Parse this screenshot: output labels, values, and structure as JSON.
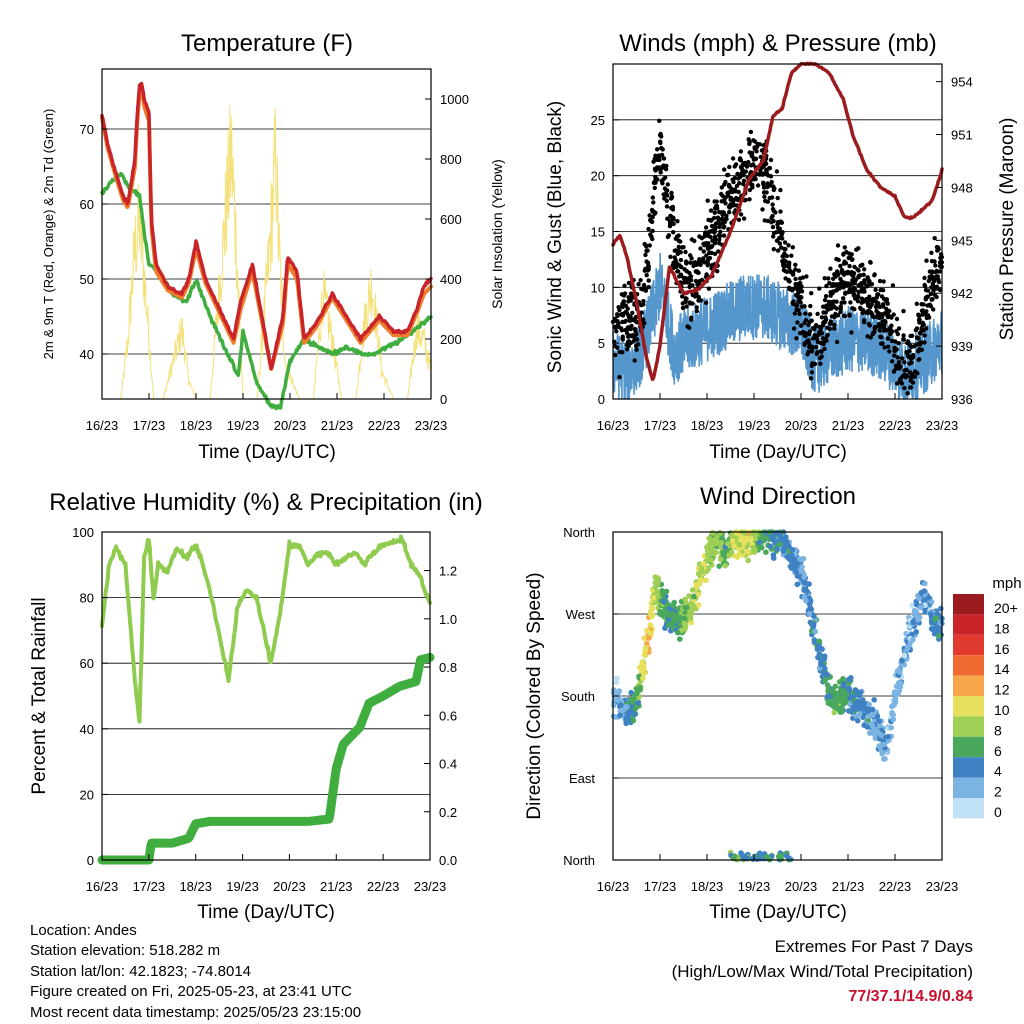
{
  "charts": {
    "temp": {
      "title": "Temperature (F)",
      "ylabel_left": "2m & 9m T (Red, Orange) & 2m Td (Green)",
      "ylabel_right": "Solar Insolation (Yellow)",
      "xlabel": "Time (Day/UTC)",
      "yticks_left": [
        "40",
        "50",
        "60",
        "70"
      ],
      "yticks_right": [
        "0",
        "200",
        "400",
        "600",
        "800",
        "1000"
      ],
      "xticks": [
        "16/23",
        "17/23",
        "18/23",
        "19/23",
        "20/23",
        "21/23",
        "22/23",
        "23/23"
      ]
    },
    "wind": {
      "title": "Winds (mph) & Pressure (mb)",
      "ylabel_left": "Sonic Wind & Gust (Blue, Black)",
      "ylabel_right": "Station Pressure (Maroon)",
      "xlabel": "Time (Day/UTC)",
      "yticks_left": [
        "0",
        "5",
        "10",
        "15",
        "20",
        "25"
      ],
      "yticks_right": [
        "936",
        "939",
        "942",
        "945",
        "948",
        "951",
        "954"
      ],
      "xticks": [
        "16/23",
        "17/23",
        "18/23",
        "19/23",
        "20/23",
        "21/23",
        "22/23",
        "23/23"
      ]
    },
    "rh": {
      "title": "Relative Humidity (%) & Precipitation (in)",
      "ylabel_left": "Percent & Total Rainfall",
      "xlabel": "Time (Day/UTC)",
      "yticks_left": [
        "0",
        "20",
        "40",
        "60",
        "80",
        "100"
      ],
      "yticks_right": [
        "0.0",
        "0.2",
        "0.4",
        "0.6",
        "0.8",
        "1.0",
        "1.2"
      ],
      "xticks": [
        "16/23",
        "17/23",
        "18/23",
        "19/23",
        "20/23",
        "21/23",
        "22/23",
        "23/23"
      ]
    },
    "dir": {
      "title": "Wind Direction",
      "ylabel_left": "Direction (Colored By Speed)",
      "xlabel": "Time (Day/UTC)",
      "yticks_left": [
        "North",
        "East",
        "South",
        "West",
        "North"
      ],
      "xticks": [
        "16/23",
        "17/23",
        "18/23",
        "19/23",
        "20/23",
        "21/23",
        "22/23",
        "23/23"
      ],
      "legend_title": "mph",
      "legend_labels": [
        "20+",
        "18",
        "16",
        "14",
        "12",
        "10",
        "8",
        "6",
        "4",
        "2",
        "0"
      ],
      "legend_colors": [
        "#9b1b1e",
        "#c8242a",
        "#e03a2f",
        "#f06a32",
        "#f7a64a",
        "#e6e05c",
        "#9fcf55",
        "#4aa85c",
        "#3f82c4",
        "#7bb4e3",
        "#bfe0f5"
      ]
    }
  },
  "info": {
    "location": "Location: Andes",
    "elevation": "Station elevation: 518.282 m",
    "latlon": "Station lat/lon: 42.1823; -74.8014",
    "created": "Figure created on Fri, 2025-05-23, at 23:41 UTC",
    "timestamp": "Most recent data timestamp: 2025/05/23 23:15:00"
  },
  "extremes": {
    "title": "Extremes For Past 7 Days",
    "subtitle": "(High/Low/Max Wind/Total Precipitation)",
    "values": "77/37.1/14.9/0.84"
  },
  "chart_data": [
    {
      "type": "line",
      "title": "Temperature (F)",
      "xlabel": "Time (Day/UTC)",
      "ylabel": "2m & 9m T (Red, Orange) & 2m Td (Green)",
      "ylabel_right": "Solar Insolation (Yellow)",
      "xlim": [
        0,
        7
      ],
      "ylim": [
        34,
        78
      ],
      "ylim_right": [
        0,
        1100
      ],
      "series": [
        {
          "name": "2m T",
          "color": "#c8242a",
          "axis": "left",
          "x": [
            0,
            0.12,
            0.3,
            0.45,
            0.55,
            0.7,
            0.75,
            0.8,
            0.85,
            0.9,
            1.0,
            1.05,
            1.15,
            1.4,
            1.7,
            1.85,
            2.0,
            2.2,
            2.5,
            2.8,
            2.95,
            3.2,
            3.6,
            3.85,
            3.95,
            4.15,
            4.3,
            4.55,
            4.9,
            5.2,
            5.5,
            5.9,
            6.2,
            6.5,
            6.7,
            6.85,
            7.0
          ],
          "values": [
            72,
            68,
            64,
            61,
            60,
            66,
            72,
            76,
            76,
            74,
            72,
            58,
            52,
            49,
            48,
            50,
            55,
            50,
            46,
            42,
            47,
            52,
            38,
            45,
            53,
            51,
            42,
            44,
            48,
            45,
            42,
            45,
            43,
            43,
            46,
            49,
            50
          ]
        },
        {
          "name": "9m T",
          "color": "#f07d2a",
          "axis": "left",
          "x": [
            0,
            0.12,
            0.3,
            0.45,
            0.55,
            0.7,
            0.75,
            0.8,
            0.85,
            0.9,
            1.0,
            1.05,
            1.15,
            1.4,
            1.7,
            1.85,
            2.0,
            2.2,
            2.5,
            2.8,
            2.95,
            3.2,
            3.6,
            3.85,
            3.95,
            4.15,
            4.3,
            4.55,
            4.9,
            5.2,
            5.5,
            5.9,
            6.2,
            6.5,
            6.7,
            6.85,
            7.0
          ],
          "values": [
            71.5,
            67.5,
            63.5,
            60.5,
            59.5,
            65,
            71,
            75,
            75,
            73,
            71,
            57,
            51,
            48.5,
            47.5,
            49.5,
            54,
            49.5,
            45.5,
            41.5,
            46,
            51,
            38,
            44,
            52,
            50,
            41.5,
            43.5,
            47.5,
            44.5,
            41.5,
            44.5,
            42.5,
            42.5,
            45.5,
            48,
            49
          ]
        },
        {
          "name": "2m Td",
          "color": "#3fae3f",
          "axis": "left",
          "x": [
            0,
            0.2,
            0.4,
            0.6,
            0.8,
            0.9,
            1.0,
            1.2,
            1.5,
            1.8,
            2.0,
            2.3,
            2.6,
            2.9,
            3.0,
            3.3,
            3.6,
            3.8,
            4.0,
            4.3,
            4.6,
            4.9,
            5.2,
            5.5,
            5.8,
            6.1,
            6.4,
            6.6,
            6.8,
            7.0
          ],
          "values": [
            61.5,
            63,
            64,
            62,
            61,
            56,
            52,
            51,
            48,
            47,
            50,
            45,
            41,
            37,
            43,
            36,
            33,
            33,
            39,
            42,
            41,
            40,
            41,
            40,
            40,
            41,
            42,
            43,
            44,
            45
          ]
        },
        {
          "name": "Solar Insolation",
          "color": "#f5e17a",
          "axis": "right",
          "x": [
            0,
            0.4,
            0.55,
            0.7,
            0.8,
            0.95,
            1.1,
            1.3,
            1.5,
            1.7,
            1.85,
            2.0,
            2.3,
            2.55,
            2.75,
            2.85,
            3.0,
            3.3,
            3.55,
            3.7,
            3.75,
            3.9,
            4.2,
            4.5,
            4.7,
            4.9,
            5.1,
            5.4,
            5.6,
            5.75,
            5.95,
            6.2,
            6.5,
            6.7,
            6.85,
            7.0
          ],
          "values": [
            0,
            0,
            250,
            650,
            760,
            400,
            0,
            0,
            150,
            300,
            80,
            0,
            0,
            600,
            1060,
            700,
            0,
            0,
            600,
            1050,
            700,
            150,
            0,
            0,
            450,
            250,
            0,
            0,
            350,
            500,
            120,
            0,
            0,
            300,
            250,
            120
          ]
        }
      ]
    },
    {
      "type": "scatter",
      "title": "Winds (mph) & Pressure (mb)",
      "xlabel": "Time (Day/UTC)",
      "ylabel": "Sonic Wind & Gust (Blue, Black)",
      "ylabel_right": "Station Pressure (Maroon)",
      "xlim": [
        0,
        7
      ],
      "ylim": [
        0,
        30
      ],
      "ylim_right": [
        936,
        955
      ],
      "series": [
        {
          "name": "Pressure",
          "color": "#9b1b1e",
          "axis": "right",
          "x": [
            0,
            0.15,
            0.3,
            0.5,
            0.7,
            0.85,
            1.0,
            1.2,
            1.5,
            1.8,
            2.1,
            2.5,
            2.9,
            3.2,
            3.4,
            3.6,
            3.8,
            4.0,
            4.3,
            4.6,
            4.9,
            5.1,
            5.4,
            5.7,
            6.0,
            6.2,
            6.4,
            6.6,
            6.8,
            7.0
          ],
          "values": [
            944.8,
            945.3,
            944.0,
            941.5,
            938.5,
            937.0,
            939.0,
            943.5,
            942.0,
            942.2,
            943.0,
            945.5,
            948.5,
            949.5,
            952.0,
            952.5,
            954.5,
            955.0,
            955.0,
            954.5,
            953.0,
            951.0,
            949.0,
            948.0,
            947.5,
            946.3,
            946.3,
            946.8,
            947.3,
            949.0
          ]
        },
        {
          "name": "Sonic Wind",
          "color": "#5596cd",
          "axis": "left",
          "x": [
            0,
            0.3,
            0.6,
            0.9,
            1.0,
            1.3,
            1.6,
            2.0,
            2.4,
            2.8,
            3.2,
            3.6,
            4.0,
            4.3,
            4.6,
            5.0,
            5.4,
            5.8,
            6.2,
            6.6,
            7.0
          ],
          "values": [
            3,
            2,
            4,
            8,
            10,
            4,
            5,
            6,
            7,
            8,
            8,
            7,
            6,
            3,
            4,
            5,
            5,
            4,
            2,
            3,
            5
          ]
        },
        {
          "name": "Gust",
          "color": "#000000",
          "axis": "left",
          "x": [
            0,
            0.3,
            0.6,
            0.8,
            0.9,
            1.0,
            1.3,
            1.6,
            1.9,
            2.2,
            2.5,
            2.8,
            3.1,
            3.4,
            3.7,
            4.0,
            4.3,
            4.6,
            4.9,
            5.2,
            5.5,
            5.8,
            6.1,
            6.4,
            6.7,
            7.0
          ],
          "values": [
            6,
            7,
            8,
            14,
            20,
            22,
            14,
            10,
            12,
            15,
            18,
            20,
            22,
            18,
            12,
            8,
            5,
            8,
            11,
            10,
            9,
            7,
            4,
            3,
            9,
            13
          ]
        }
      ]
    },
    {
      "type": "line",
      "title": "Relative Humidity (%) & Precipitation (in)",
      "xlabel": "Time (Day/UTC)",
      "ylabel": "Percent & Total Rainfall",
      "xlim": [
        0,
        7
      ],
      "ylim": [
        0,
        100
      ],
      "ylim_right": [
        0,
        1.36
      ],
      "series": [
        {
          "name": "Relative Humidity",
          "color": "#8fcb4e",
          "axis": "left",
          "x": [
            0,
            0.15,
            0.3,
            0.5,
            0.7,
            0.8,
            0.9,
            1.0,
            1.1,
            1.2,
            1.4,
            1.6,
            1.8,
            2.0,
            2.2,
            2.4,
            2.7,
            2.9,
            3.1,
            3.3,
            3.6,
            3.8,
            4.0,
            4.2,
            4.4,
            4.6,
            4.8,
            5.0,
            5.2,
            5.4,
            5.6,
            5.8,
            6.0,
            6.2,
            6.4,
            6.6,
            6.8,
            7.0
          ],
          "values": [
            71,
            90,
            95,
            90,
            55,
            42,
            92,
            98,
            80,
            90,
            88,
            95,
            92,
            96,
            88,
            76,
            55,
            78,
            82,
            80,
            60,
            75,
            96,
            96,
            90,
            93,
            94,
            90,
            92,
            94,
            90,
            94,
            96,
            97,
            98,
            90,
            86,
            78
          ]
        },
        {
          "name": "Total Rainfall",
          "color": "#3fae3f",
          "axis": "right",
          "x": [
            0,
            1.0,
            1.05,
            1.5,
            1.85,
            2.0,
            2.3,
            3.0,
            4.0,
            4.4,
            4.85,
            5.0,
            5.15,
            5.5,
            5.7,
            6.0,
            6.35,
            6.7,
            6.8,
            7.0
          ],
          "values": [
            0.0,
            0.0,
            0.07,
            0.07,
            0.09,
            0.15,
            0.16,
            0.16,
            0.16,
            0.16,
            0.17,
            0.38,
            0.48,
            0.55,
            0.65,
            0.68,
            0.72,
            0.74,
            0.83,
            0.84
          ]
        }
      ]
    },
    {
      "type": "scatter",
      "title": "Wind Direction",
      "xlabel": "Time (Day/UTC)",
      "ylabel": "Direction (Colored By Speed)",
      "xlim": [
        0,
        7
      ],
      "ylim": [
        0,
        360
      ],
      "series": [
        {
          "name": "Direction",
          "color_by": "speed (mph)",
          "x": [
            0.1,
            0.3,
            0.5,
            0.65,
            0.75,
            0.9,
            1.05,
            1.2,
            1.4,
            1.6,
            1.8,
            2.0,
            2.2,
            2.4,
            2.6,
            2.8,
            3.0,
            3.2,
            3.4,
            3.6,
            3.8,
            4.0,
            4.6,
            4.8,
            5.0,
            5.2,
            5.4,
            5.6,
            5.8,
            6.2,
            6.6,
            6.85
          ],
          "values": [
            175,
            160,
            170,
            215,
            240,
            300,
            280,
            270,
            260,
            270,
            300,
            330,
            355,
            335,
            355,
            350,
            360,
            360,
            355,
            350,
            330,
            320,
            180,
            175,
            185,
            170,
            160,
            150,
            120,
            230,
            290,
            260
          ],
          "speed": [
            2,
            4,
            6,
            10,
            12,
            8,
            6,
            5,
            6,
            8,
            9,
            8,
            7,
            6,
            9,
            10,
            8,
            6,
            5,
            4,
            4,
            3,
            5,
            6,
            5,
            4,
            3,
            3,
            2,
            2,
            3,
            4
          ]
        }
      ]
    }
  ]
}
